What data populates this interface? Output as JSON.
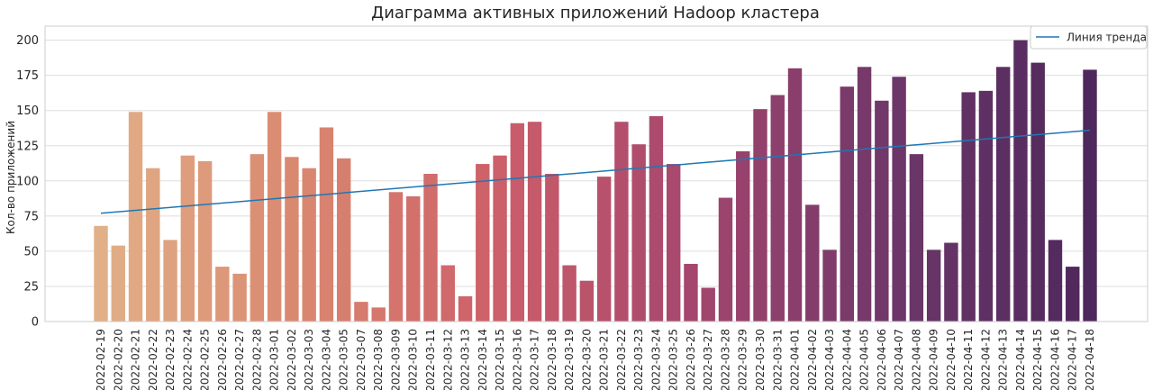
{
  "chart_data": {
    "type": "bar",
    "title": "Диаграмма активных приложений Hadoop кластера",
    "xlabel": "",
    "ylabel": "Кол-во приложений",
    "ylim": [
      0,
      210
    ],
    "yticks": [
      0,
      25,
      50,
      75,
      100,
      125,
      150,
      175,
      200
    ],
    "grid": true,
    "legend_position": "top-right",
    "palette": "flare",
    "trend_color": "#1f77b4",
    "categories": [
      "2022-02-19",
      "2022-02-20",
      "2022-02-21",
      "2022-02-22",
      "2022-02-23",
      "2022-02-24",
      "2022-02-25",
      "2022-02-26",
      "2022-02-27",
      "2022-02-28",
      "2022-03-01",
      "2022-03-02",
      "2022-03-03",
      "2022-03-04",
      "2022-03-05",
      "2022-03-07",
      "2022-03-08",
      "2022-03-09",
      "2022-03-10",
      "2022-03-11",
      "2022-03-12",
      "2022-03-13",
      "2022-03-14",
      "2022-03-15",
      "2022-03-16",
      "2022-03-17",
      "2022-03-18",
      "2022-03-19",
      "2022-03-20",
      "2022-03-21",
      "2022-03-22",
      "2022-03-23",
      "2022-03-24",
      "2022-03-25",
      "2022-03-26",
      "2022-03-27",
      "2022-03-28",
      "2022-03-29",
      "2022-03-30",
      "2022-03-31",
      "2022-04-01",
      "2022-04-02",
      "2022-04-03",
      "2022-04-04",
      "2022-04-05",
      "2022-04-06",
      "2022-04-07",
      "2022-04-08",
      "2022-04-09",
      "2022-04-10",
      "2022-04-11",
      "2022-04-12",
      "2022-04-13",
      "2022-04-14",
      "2022-04-15",
      "2022-04-16",
      "2022-04-17",
      "2022-04-18"
    ],
    "values": [
      68,
      54,
      149,
      109,
      58,
      118,
      114,
      39,
      34,
      119,
      149,
      117,
      109,
      138,
      116,
      14,
      10,
      92,
      89,
      105,
      40,
      18,
      112,
      118,
      141,
      142,
      105,
      40,
      29,
      103,
      142,
      126,
      146,
      112,
      41,
      24,
      88,
      121,
      151,
      161,
      180,
      83,
      51,
      167,
      181,
      157,
      174,
      119,
      51,
      56,
      163,
      164,
      181,
      200,
      184,
      58,
      39,
      179
    ],
    "trend": {
      "name": "Линия тренда",
      "start": 77,
      "end": 136
    }
  }
}
